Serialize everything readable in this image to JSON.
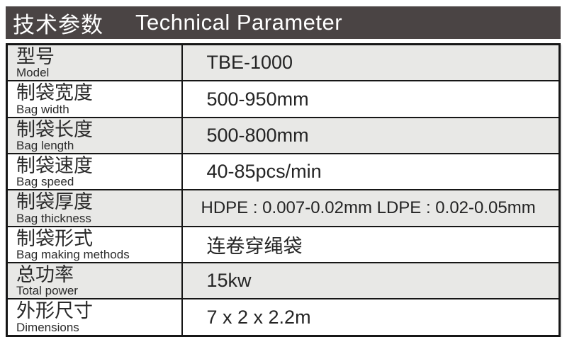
{
  "header": {
    "title_zh": "技术参数",
    "title_en": "Technical Parameter"
  },
  "colors": {
    "header_bg": "#4a4444",
    "header_text": "#ffffff",
    "row_alt_bg": "#e8e8e6",
    "row_bg": "#ffffff",
    "border": "#161616",
    "text": "#1f1f1f"
  },
  "table": {
    "rows": [
      {
        "label_zh": "型号",
        "label_en": "Model",
        "value": "TBE-1000"
      },
      {
        "label_zh": "制袋宽度",
        "label_en": "Bag width",
        "value": "500-950mm"
      },
      {
        "label_zh": "制袋长度",
        "label_en": "Bag length",
        "value": "500-800mm"
      },
      {
        "label_zh": "制袋速度",
        "label_en": "Bag speed",
        "value": "40-85pcs/min"
      },
      {
        "label_zh": "制袋厚度",
        "label_en": "Bag thickness",
        "value": "HDPE : 0.007-0.02mm LDPE : 0.02-0.05mm"
      },
      {
        "label_zh": "制袋形式",
        "label_en": "Bag making methods",
        "value": "连卷穿绳袋"
      },
      {
        "label_zh": "总功率",
        "label_en": "Total power",
        "value": "15kw"
      },
      {
        "label_zh": "外形尺寸",
        "label_en": "Dimensions",
        "value": "7 x 2 x 2.2m"
      }
    ]
  }
}
